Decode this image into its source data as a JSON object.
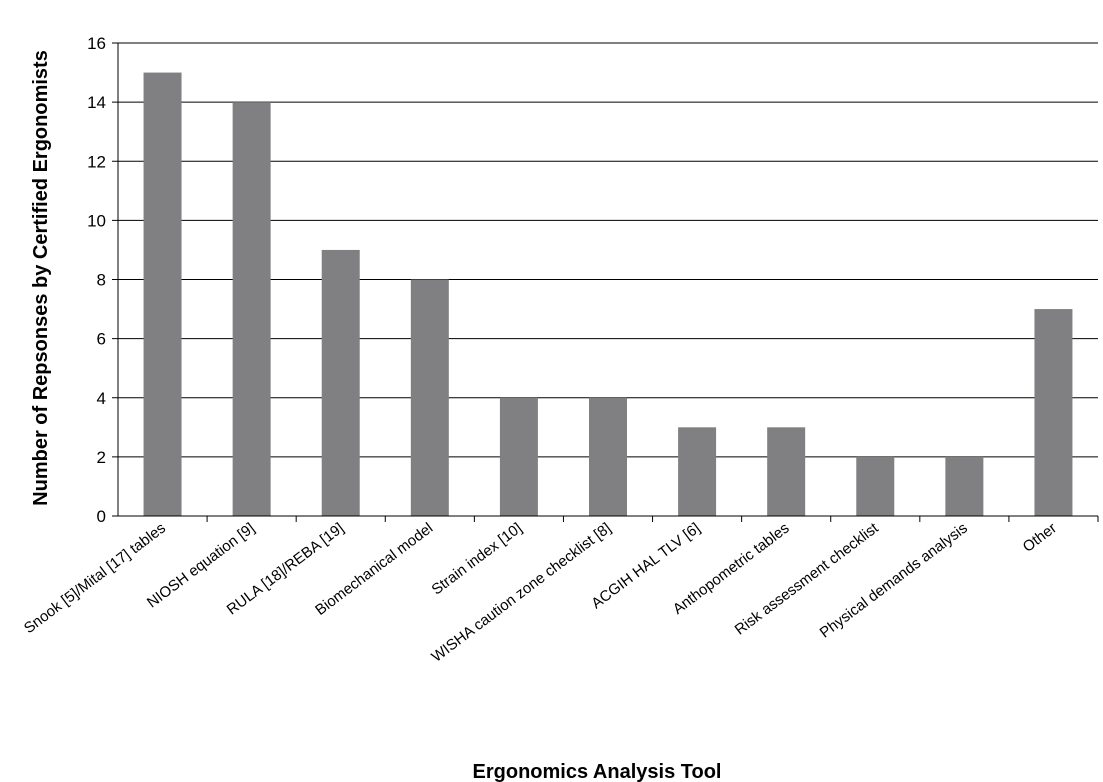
{
  "chart_data": {
    "type": "bar",
    "title": "",
    "xlabel": "Ergonomics Analysis Tool",
    "ylabel": "Number of Repsonses by Certified Ergonomists",
    "categories": [
      "Snook [5]/Mital [17] tables",
      "NIOSH equation [9]",
      "RULA [18]/REBA [19]",
      "Biomechanical model",
      "Strain index [10]",
      "WISHA caution zone checklist [8]",
      "ACGIH HAL TLV [6]",
      "Anthopometric tables",
      "Risk assessment checklist",
      "Physical demands analysis",
      "Other"
    ],
    "values": [
      15,
      14,
      9,
      8,
      4,
      4,
      3,
      3,
      2,
      2,
      7
    ],
    "ylim": [
      0,
      16
    ],
    "yticks": [
      "0",
      "2",
      "4",
      "6",
      "8",
      "10",
      "12",
      "14",
      "16"
    ],
    "grid": "horizontal",
    "legend": "none",
    "bar_color": "#808083"
  }
}
